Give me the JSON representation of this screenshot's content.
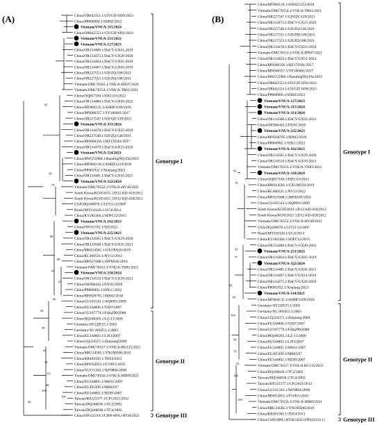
{
  "panel_a": {
    "label": "(A)",
    "genotype_labels": [
      "Genotype I",
      "Genotype II",
      "Genotype III"
    ],
    "taxa": [
      {
        "t": "China/OR842551.1/CN/GD/1099/2023",
        "m": false
      },
      {
        "t": "China/PP860900.1/SDHZ/2022",
        "m": false
      },
      {
        "t": "Vietnam/VNUA-315/2024",
        "m": true
      },
      {
        "t": "China/OR842553.1/CN/GD/1092/2023",
        "m": false
      },
      {
        "t": "Vietnam/VNUA-231/2023",
        "m": true
      },
      {
        "t": "Vietnam/VNUA-127/2023",
        "m": true
      },
      {
        "t": "China/OR134489.1/DaCV-GX41-2019",
        "m": false
      },
      {
        "t": "China/OR134475.1/DaCV-GX28-2020",
        "m": false
      },
      {
        "t": "China/OR134464.1/DaCV-GX05-2019",
        "m": false
      },
      {
        "t": "China/OR134467.1/DaCV-GX09-2019",
        "m": false
      },
      {
        "t": "China/OR227553.1/GD/ZQ/180/2021",
        "m": false
      },
      {
        "t": "China/OR227553.1/GD/ZQ/188/2021",
        "m": false
      },
      {
        "t": "Vietnam/OM176581.1/VNUA-HN47/2021",
        "m": false
      },
      {
        "t": "Vietnam/OM176554.1/VNUA-TB61/2021",
        "m": false
      },
      {
        "t": "China/OQ857184.1/DZ2116/2022",
        "m": false
      },
      {
        "t": "China/OR134486.1/DaCV-GX49-2022",
        "m": false
      },
      {
        "t": "China/MT084135.1/AHHF1109/2018",
        "m": false
      },
      {
        "t": "China/MN068357.1/YF180401/2017",
        "m": false
      },
      {
        "t": "China/OR227547.1/GD/QY/129/2021",
        "m": false
      },
      {
        "t": "Vietnam/VNUA-331/2024",
        "m": true
      },
      {
        "t": "China/OR134478.1/DaCV-GX25-2020",
        "m": false
      },
      {
        "t": "China/OR227548.1/GD/ZQ/144/2021",
        "m": false
      },
      {
        "t": "China/MN068356.1/HZ170301/2017",
        "m": false
      },
      {
        "t": "China/OR134479.1/DaCV-GX33-2020",
        "m": false
      },
      {
        "t": "Vietnam/VNUA-114/2023",
        "m": true
      },
      {
        "t": "China/MW255980.1/BaodingNQ-Du/2019",
        "m": false
      },
      {
        "t": "China/MT084136.1/AHHZ1223/2018",
        "m": false
      },
      {
        "t": "China/PP081932.1/Xinjiang/2023",
        "m": false
      },
      {
        "t": "China/OR134481.1/DaCV-GX41-2021",
        "m": false
      },
      {
        "t": "Vietnam/VNUA-322/2024",
        "m": true
      },
      {
        "t": "Vietnam/OM176552.1/VNUA-HY40/2021",
        "m": false
      },
      {
        "t": "South Korea/KC851815.1/D12-KD-019/2012",
        "m": false
      },
      {
        "t": "South Korea/KC851821.1/D12-KD-028/2012",
        "m": false
      },
      {
        "t": "USA/DQ100076.1/33753-52/2007",
        "m": false
      },
      {
        "t": "Brazil/MT318126.1/UC4/2014",
        "m": false
      },
      {
        "t": "China/KY283304.1/SDFC12/2015",
        "m": false
      },
      {
        "t": "Vietnam/VNUA-102/2023",
        "m": true
      },
      {
        "t": "China/OP161742.1/SD/2022",
        "m": false
      },
      {
        "t": "Vietnam/VNUA-225/2023",
        "m": true
      },
      {
        "t": "China/OR134505.1/DaCV-GX29-2020",
        "m": false
      },
      {
        "t": "China/OR134508.1/DaCV-GX35-2021",
        "m": false
      },
      {
        "t": "China/MK814581.1/GX190510/2019",
        "m": false
      },
      {
        "t": "China/KC460531.1/NV12/2012",
        "m": false
      },
      {
        "t": "China/MF627688.1/JSPX03E/2016",
        "m": false
      },
      {
        "t": "Vietnam/OM176553.1/VNUA-TN85/2021",
        "m": false
      },
      {
        "t": "Vietnam/VNUA-318/2024",
        "m": true
      },
      {
        "t": "China/OR134510.1/DaCV-GX39-2021",
        "m": false
      },
      {
        "t": "China/OK966442.1/DY01/2020",
        "m": false
      },
      {
        "t": "China/PP860902.1/SDLC/2022",
        "m": false
      },
      {
        "t": "China/MN928795.1/HN02/2018",
        "m": false
      },
      {
        "t": "China/GU165543.1/AQ0901/2009",
        "m": false
      },
      {
        "t": "China/EU344806.1/YS07/2007",
        "m": false
      },
      {
        "t": "China/GU167779.1/Fdtq290/2008",
        "m": false
      },
      {
        "t": "China/HQ180265.1/LZ-11/2009",
        "m": false
      },
      {
        "t": "Germany/AY228555.1/2003",
        "m": false
      },
      {
        "t": "Germany/NC 005053.1/2003",
        "m": false
      },
      {
        "t": "China/EU344803.1/LJ03/2007",
        "m": false
      },
      {
        "t": "China/GQ334371.1/Zhejiang/2009",
        "m": false
      },
      {
        "t": "Vietnam/OM176557.1/VNUA-BG135/2021",
        "m": false
      },
      {
        "t": "China/MK514585.1/YN180506/2018",
        "m": false
      },
      {
        "t": "China/KR491945.1/TN24/2013",
        "m": false
      },
      {
        "t": "China/MN052853.1/FJ1815/2018",
        "m": false
      },
      {
        "t": "China/GU131343.1/WF0804/2008",
        "m": false
      },
      {
        "t": "Vietnam/OM176556.1/VNUA-HD89/2021",
        "m": false
      },
      {
        "t": "China/EU344805.1/MH11/2007",
        "m": false
      },
      {
        "t": "China/EU495309.1/MB02/07",
        "m": false
      },
      {
        "t": "China/EU344802.1/HZ09/2007",
        "m": false
      },
      {
        "t": "Taiwan/KP225377.1/CP12021/2012",
        "m": false
      },
      {
        "t": "Taiwan/DQ166836.1/TC2/2002",
        "m": false
      },
      {
        "t": "Taiwan/DQ166838.1/TC4/2002",
        "m": false
      },
      {
        "t": "China/OP432310.1/CHN-HNU-HYH/2022",
        "m": false
      }
    ],
    "bootstrap": [
      "58",
      "85",
      "75",
      "88",
      "98",
      "64",
      "97",
      "96",
      "49",
      "49",
      "99",
      "40",
      "55",
      "48",
      "100",
      "99",
      "100"
    ]
  },
  "panel_b": {
    "label": "(B)",
    "genotype_labels": [
      "Genotype I",
      "Genotype II",
      "Genotype III"
    ],
    "taxa": [
      {
        "t": "China/MT084134.1/SDHZ1223/2018",
        "m": false
      },
      {
        "t": "Vietnam/OM176554.1/VNUA-TB61/2021",
        "m": false
      },
      {
        "t": "China/OR227547.1/GD/QY/129/2021",
        "m": false
      },
      {
        "t": "China/OR134472.1/DaCV-GX25-2020",
        "m": false
      },
      {
        "t": "China/OR227548.1/GD/ZQ/144/2021",
        "m": false
      },
      {
        "t": "China/OR227551.1/GD/ZM/180/2021",
        "m": false
      },
      {
        "t": "China/OR227553.1/GD/ZQ/188/2021",
        "m": false
      },
      {
        "t": "China/OR134478.1/DaCV-GX33-2020",
        "m": false
      },
      {
        "t": "Vietnam/OM176553.1/VNUA-HN47/2021",
        "m": false
      },
      {
        "t": "China/OR134459.1/DaCV-GX51-2022",
        "m": false
      },
      {
        "t": "China/MN068356.1/HZ170301/2017",
        "m": false
      },
      {
        "t": "China/MN068357.1/YF180401/2017",
        "m": false
      },
      {
        "t": "China/MW255980.1/BaodingNQ-Du/2019",
        "m": false
      },
      {
        "t": "China/OR842553.1/CN/GD/1092/2023",
        "m": false
      },
      {
        "t": "China/OR842554.1/CN/GD/1099/2023",
        "m": false
      },
      {
        "t": "China/PP860900.1/SDHZ/2022",
        "m": false
      },
      {
        "t": "Vietnam/VNUA-127/2023",
        "m": true
      },
      {
        "t": "Vietnam/VNUA-315/2024",
        "m": true
      },
      {
        "t": "Vietnam/VNUA-331/2024",
        "m": true
      },
      {
        "t": "China/OR134508.1/DaCV-GX35-2021",
        "m": false
      },
      {
        "t": "China/OK966442.1/DY01/2020",
        "m": false
      },
      {
        "t": "Vietnam/VNUA-225/2023",
        "m": true
      },
      {
        "t": "China/MN928795.1/HN02/2018",
        "m": false
      },
      {
        "t": "China/PP860902.1/SDLC/2022",
        "m": false
      },
      {
        "t": "Vietnam/VNUA-102/2023",
        "m": true
      },
      {
        "t": "China/OR134505.1/DaCV-GX29-2020",
        "m": false
      },
      {
        "t": "China/OR134510.1/DaCV-GX39-2021",
        "m": false
      },
      {
        "t": "Vietnam/OM176555.1/VNUA-TN85/2021",
        "m": false
      },
      {
        "t": "Vietnam/VNUA-318/2024",
        "m": true
      },
      {
        "t": "China/OQ857184.1/DZ2116/2022",
        "m": false
      },
      {
        "t": "China/MK814581.1/GX190510/2019",
        "m": false
      },
      {
        "t": "China/KC460531.1/NV12/2012",
        "m": false
      },
      {
        "t": "China/MF627688.1/JSPX03E/2016",
        "m": false
      },
      {
        "t": "China/GU165543.1/AQ0901/2009",
        "m": false
      },
      {
        "t": "South Korea/KC851819.1/D12-KD-019/2012",
        "m": false
      },
      {
        "t": "South Korea/KC851821.1/D12-KD-028/2012",
        "m": false
      },
      {
        "t": "Vietnam/OM176552.1/VNUA-HY40/2021",
        "m": false
      },
      {
        "t": "USA/DQ100076.1/33753-52/2007",
        "m": false
      },
      {
        "t": "Brazil/MT318126.1/UC4/2014",
        "m": false
      },
      {
        "t": "China/KY283304.1/SDFC12/2015",
        "m": false
      },
      {
        "t": "China/OR134488.1/DaCV-GX49-2022",
        "m": false
      },
      {
        "t": "Vietnam/VNUA-231/2023",
        "m": true
      },
      {
        "t": "China/OR134464.1/DaCV-GX05-2019",
        "m": false
      },
      {
        "t": "Vietnam/VNUA-322/2024",
        "m": true
      },
      {
        "t": "China/OR134481.1/DaCV-GX41-2021",
        "m": false
      },
      {
        "t": "China/OR134467.1/DaCV-GX11-2019",
        "m": false
      },
      {
        "t": "China/OR134475.1/DaCV-GX28-2020",
        "m": false
      },
      {
        "t": "China/PP081932.1/Xinjiang/2023",
        "m": false
      },
      {
        "t": "Vietnam/VNUA-114/2023",
        "m": true
      },
      {
        "t": "China/MT084135.1/AHHF1109/2018",
        "m": false
      },
      {
        "t": "Germany/AY228555.1/2003",
        "m": false
      },
      {
        "t": "Germany/NC 005053.1/2003",
        "m": false
      },
      {
        "t": "China/GQ334371.1/Zhejiang/2009",
        "m": false
      },
      {
        "t": "China/EU344806.1/YS07/2007",
        "m": false
      },
      {
        "t": "China/GU167779.1/Fdtq290/2008",
        "m": false
      },
      {
        "t": "China/HQ180265.1/LZ-11/2009",
        "m": false
      },
      {
        "t": "China/EU344803.1/LJ03/2007",
        "m": false
      },
      {
        "t": "China/EU344805.1/MH11/2007",
        "m": false
      },
      {
        "t": "China/EU495309.1/MB02/07",
        "m": false
      },
      {
        "t": "China/EU344802.1/HZ09/2007",
        "m": false
      },
      {
        "t": "Vietnam/OM176557.1/VNUA BG135/2021",
        "m": false
      },
      {
        "t": "China/DQ166836.1/TC2/2002",
        "m": false
      },
      {
        "t": "Taiwan/DQ166838.1/TC4/2002",
        "m": false
      },
      {
        "t": "Taiwan/KP225377.1/CP12021/2012",
        "m": false
      },
      {
        "t": "China/GU131343.1/WF0804/2008",
        "m": false
      },
      {
        "t": "China/MN052853.1/FJ1815/2018",
        "m": false
      },
      {
        "t": "Vietnam/OM176556.1/VNUA-HD89/2021",
        "m": false
      },
      {
        "t": "China/MK514585.1/YN180506/2018",
        "m": false
      },
      {
        "t": "China/KR491945.1/TN24/2013",
        "m": false
      },
      {
        "t": "China/CHN/HNU-HYH/2022 (OP432310.1)",
        "m": false
      }
    ],
    "bootstrap": [
      "82",
      "76",
      "93",
      "86",
      "66",
      "100",
      "94",
      "76",
      "52",
      "100",
      "100"
    ]
  }
}
